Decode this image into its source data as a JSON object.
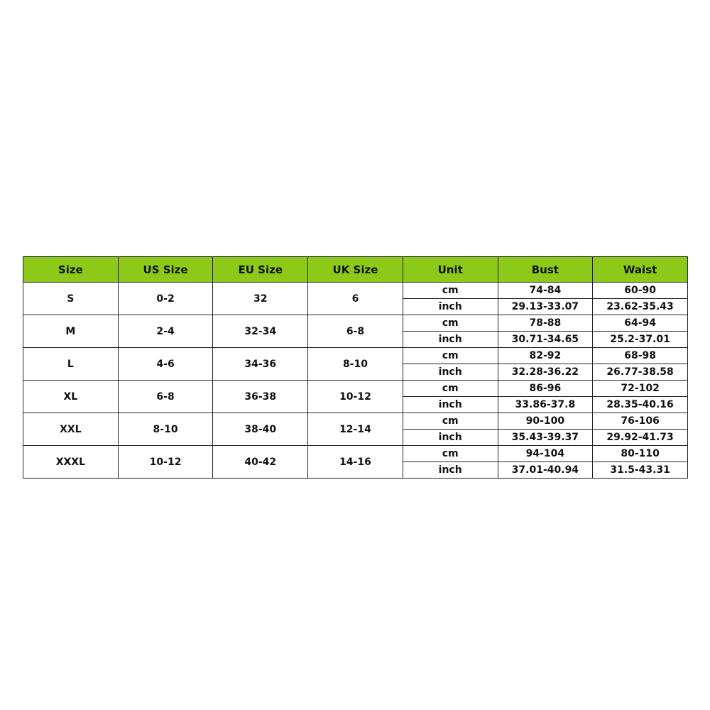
{
  "table": {
    "columns": [
      "Size",
      "US Size",
      "EU Size",
      "UK Size",
      "Unit",
      "Bust",
      "Waist"
    ],
    "rows": [
      {
        "size": "S",
        "us": "0-2",
        "eu": "32",
        "uk": "6",
        "measurements": [
          [
            "cm",
            "74-84",
            "60-90"
          ],
          [
            "inch",
            "29.13-33.07",
            "23.62-35.43"
          ]
        ]
      },
      {
        "size": "M",
        "us": "2-4",
        "eu": "32-34",
        "uk": "6-8",
        "measurements": [
          [
            "cm",
            "78-88",
            "64-94"
          ],
          [
            "inch",
            "30.71-34.65",
            "25.2-37.01"
          ]
        ]
      },
      {
        "size": "L",
        "us": "4-6",
        "eu": "34-36",
        "uk": "8-10",
        "measurements": [
          [
            "cm",
            "82-92",
            "68-98"
          ],
          [
            "inch",
            "32.28-36.22",
            "26.77-38.58"
          ]
        ]
      },
      {
        "size": "XL",
        "us": "6-8",
        "eu": "36-38",
        "uk": "10-12",
        "measurements": [
          [
            "cm",
            "86-96",
            "72-102"
          ],
          [
            "inch",
            "33.86-37.8",
            "28.35-40.16"
          ]
        ]
      },
      {
        "size": "XXL",
        "us": "8-10",
        "eu": "38-40",
        "uk": "12-14",
        "measurements": [
          [
            "cm",
            "90-100",
            "76-106"
          ],
          [
            "inch",
            "35.43-39.37",
            "29.92-41.73"
          ]
        ]
      },
      {
        "size": "XXXL",
        "us": "10-12",
        "eu": "40-42",
        "uk": "14-16",
        "measurements": [
          [
            "cm",
            "94-104",
            "80-110"
          ],
          [
            "inch",
            "37.01-40.94",
            "31.5-43.31"
          ]
        ]
      }
    ]
  }
}
